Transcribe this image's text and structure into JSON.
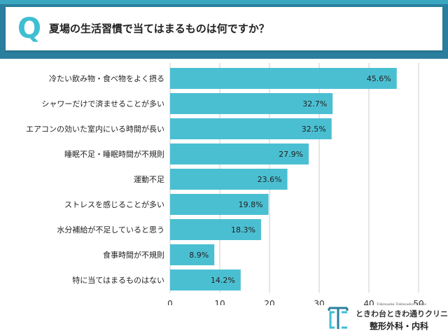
{
  "header": {
    "q_mark": "Q",
    "question": "夏場の生活習慣で当てはまるものは何ですか？"
  },
  "logo": {
    "subtitle": "Tokiwadai Tokiwadori Clinic",
    "name": "ときわ台ときわ通りクリニック",
    "department": "整形外科・内科"
  },
  "colors": {
    "bar": "#4bbfd2",
    "grid": "#cccccc",
    "frame": "#2a7f9e",
    "accent": "#3fbfd1"
  },
  "chart_data": {
    "type": "bar",
    "orientation": "horizontal",
    "categories": [
      "冷たい飲み物・食べ物をよく摂る",
      "シャワーだけで済ませることが多い",
      "エアコンの効いた室内にいる時間が長い",
      "睡眠不足・睡眠時間が不規則",
      "運動不足",
      "ストレスを感じることが多い",
      "水分補給が不足していると思う",
      "食事時間が不規則",
      "特に当てはまるものはない"
    ],
    "values": [
      45.6,
      32.7,
      32.5,
      27.9,
      23.6,
      19.8,
      18.3,
      8.9,
      14.2
    ],
    "value_labels": [
      "45.6%",
      "32.7%",
      "32.5%",
      "27.9%",
      "23.6%",
      "19.8%",
      "18.3%",
      "8.9%",
      "14.2%"
    ],
    "xlim": [
      0,
      50
    ],
    "xticks": [
      0,
      10,
      20,
      30,
      40,
      50
    ],
    "xtick_labels": [
      "0",
      "10",
      "20",
      "30",
      "40",
      "50"
    ],
    "grid": "vertical"
  }
}
